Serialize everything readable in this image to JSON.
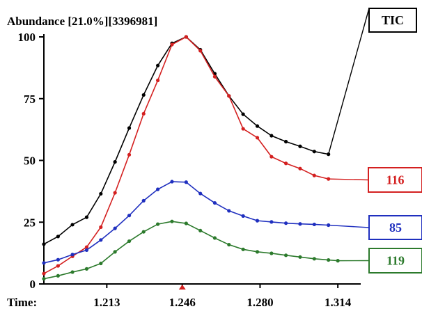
{
  "chart_data": {
    "type": "line",
    "title": "Abundance [21.0%][3396981]",
    "xlabel": "Time:",
    "ylabel": "",
    "x_ticks": [
      1.213,
      1.246,
      1.28,
      1.314
    ],
    "x_tick_labels": [
      "1.213",
      "1.246",
      "1.280",
      "1.314"
    ],
    "y_ticks": [
      0,
      25,
      50,
      75,
      100
    ],
    "y_tick_labels": [
      "0",
      "25",
      "50",
      "75",
      "100"
    ],
    "xlim": [
      1.1855,
      1.324
    ],
    "ylim": [
      0,
      100
    ],
    "marker_x": 1.246,
    "grid": false,
    "x": [
      1.1855,
      1.1906,
      1.1957,
      1.2008,
      1.2059,
      1.211,
      1.2161,
      1.2212,
      1.2263,
      1.2314,
      1.2365,
      1.2416,
      1.2467,
      1.2518,
      1.2569,
      1.262,
      1.2671,
      1.2722,
      1.2773,
      1.2824,
      1.2875,
      1.2926,
      1.2977,
      1.3028,
      1.3079,
      1.313
    ],
    "series": [
      {
        "name": "TIC",
        "color": "#000000",
        "values": [
          16.1,
          19.2,
          24.0,
          27.0,
          36.5,
          49.4,
          63.1,
          76.5,
          88.4,
          97.4,
          100.0,
          94.8,
          85.1,
          76.1,
          68.7,
          63.9,
          60.0,
          57.6,
          55.7,
          53.6,
          52.5,
          null,
          null,
          null,
          null,
          null
        ]
      },
      {
        "name": "116",
        "color": "#d42020",
        "values": [
          4.2,
          7.3,
          11.2,
          14.9,
          23.0,
          36.9,
          52.3,
          68.9,
          82.4,
          96.9,
          100.0,
          94.4,
          83.9,
          76.1,
          62.8,
          59.2,
          51.5,
          48.8,
          46.7,
          43.9,
          42.5,
          null,
          null,
          null,
          null,
          null
        ]
      },
      {
        "name": "85",
        "color": "#1f2fbf",
        "values": [
          8.5,
          9.8,
          11.9,
          13.7,
          17.8,
          22.5,
          27.7,
          33.7,
          38.3,
          41.4,
          41.2,
          36.6,
          32.8,
          29.6,
          27.5,
          25.6,
          25.1,
          24.6,
          24.3,
          24.1,
          23.8,
          null,
          null,
          null,
          null,
          null
        ]
      },
      {
        "name": "119",
        "color": "#2c7a2c",
        "values": [
          2.1,
          3.3,
          4.8,
          6.1,
          8.3,
          13.0,
          17.3,
          21.1,
          24.2,
          25.3,
          24.5,
          21.6,
          18.6,
          15.9,
          14.0,
          13.0,
          12.4,
          11.6,
          10.9,
          10.2,
          9.7,
          9.4,
          null,
          null,
          null,
          null
        ]
      }
    ],
    "series_x": [
      1.1855,
      1.1917,
      1.198,
      1.2042,
      1.2104,
      1.2166,
      1.2228,
      1.2291,
      1.2353,
      1.2415,
      1.2477,
      1.2539,
      1.2602,
      1.2664,
      1.2726,
      1.2788,
      1.285,
      1.2913,
      1.2975,
      1.3037,
      1.3099,
      1.314
    ]
  }
}
